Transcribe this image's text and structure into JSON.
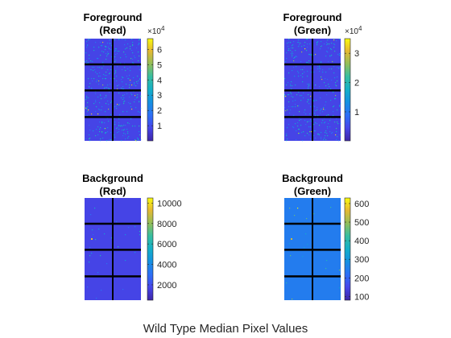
{
  "figure": {
    "title": "Wild Type Median Pixel Values"
  },
  "chart_data": [
    {
      "type": "heatmap",
      "title_line1": "Foreground",
      "title_line2": "(Red)",
      "colormap": "parula",
      "clim": [
        100,
        67000
      ],
      "colorbar": {
        "ticks": [
          10000,
          20000,
          30000,
          40000,
          50000,
          60000
        ],
        "tick_labels": [
          "1",
          "2",
          "3",
          "4",
          "5",
          "6"
        ],
        "exponent_base": "×10",
        "exponent_power": "4"
      },
      "grid": {
        "rows": 4,
        "cols": 2
      },
      "background_level": 0.12,
      "speckle": {
        "count": 420,
        "seed": 11
      },
      "hotspots": []
    },
    {
      "type": "heatmap",
      "title_line1": "Foreground",
      "title_line2": "(Green)",
      "colormap": "parula",
      "clim": [
        100,
        35000
      ],
      "colorbar": {
        "ticks": [
          10000,
          20000,
          30000
        ],
        "tick_labels": [
          "1",
          "2",
          "3"
        ],
        "exponent_base": "×10",
        "exponent_power": "4"
      },
      "grid": {
        "rows": 4,
        "cols": 2
      },
      "background_level": 0.12,
      "speckle": {
        "count": 380,
        "seed": 23
      },
      "hotspots": []
    },
    {
      "type": "heatmap",
      "title_line1": "Background",
      "title_line2": "(Red)",
      "colormap": "parula",
      "clim": [
        500,
        10500
      ],
      "colorbar": {
        "ticks": [
          2000,
          4000,
          6000,
          8000,
          10000
        ],
        "tick_labels": [
          "2000",
          "4000",
          "6000",
          "8000",
          "10000"
        ],
        "exponent_base": "",
        "exponent_power": ""
      },
      "grid": {
        "rows": 4,
        "cols": 2
      },
      "background_level": 0.12,
      "speckle": {
        "count": 30,
        "seed": 5
      },
      "hotspots": [
        {
          "col": 0,
          "row": 1,
          "value": 0.9
        }
      ]
    },
    {
      "type": "heatmap",
      "title_line1": "Background",
      "title_line2": "(Green)",
      "colormap": "parula",
      "clim": [
        80,
        630
      ],
      "colorbar": {
        "ticks": [
          100,
          200,
          300,
          400,
          500,
          600
        ],
        "tick_labels": [
          "100",
          "200",
          "300",
          "400",
          "500",
          "600"
        ],
        "exponent_base": "",
        "exponent_power": ""
      },
      "grid": {
        "rows": 4,
        "cols": 2
      },
      "background_level": 0.3,
      "speckle": {
        "count": 20,
        "seed": 9
      },
      "hotspots": [
        {
          "col": 0,
          "row": 1,
          "value": 0.85
        }
      ]
    }
  ]
}
